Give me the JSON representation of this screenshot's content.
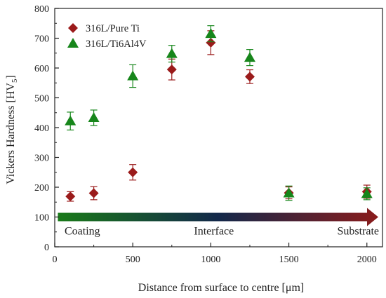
{
  "chart_data": {
    "type": "scatter",
    "xlabel": "Distance from surface to centre [μm]",
    "ylabel": "Vickers Hardness [HV",
    "ylabel_subscript": "5",
    "ylabel_suffix": "]",
    "xlim": [
      0,
      2100
    ],
    "ylim": [
      0,
      800
    ],
    "xticks": [
      0,
      500,
      1000,
      1500,
      2000
    ],
    "yticks": [
      0,
      100,
      200,
      300,
      400,
      500,
      600,
      700,
      800
    ],
    "grid": false,
    "legend_position": "top-left",
    "series": [
      {
        "name": "316L/Pure Ti",
        "marker": "diamond",
        "color": "#9b1b1b",
        "points": [
          {
            "x": 100,
            "y": 169,
            "err": 16
          },
          {
            "x": 250,
            "y": 180,
            "err": 22
          },
          {
            "x": 500,
            "y": 250,
            "err": 26
          },
          {
            "x": 750,
            "y": 595,
            "err": 35
          },
          {
            "x": 1000,
            "y": 685,
            "err": 40
          },
          {
            "x": 1250,
            "y": 571,
            "err": 23
          },
          {
            "x": 1500,
            "y": 181,
            "err": 20
          },
          {
            "x": 2000,
            "y": 185,
            "err": 22
          }
        ]
      },
      {
        "name": "316L/Ti6Al4V",
        "marker": "triangle",
        "color": "#17861b",
        "points": [
          {
            "x": 100,
            "y": 422,
            "err": 30
          },
          {
            "x": 250,
            "y": 433,
            "err": 26
          },
          {
            "x": 500,
            "y": 573,
            "err": 38
          },
          {
            "x": 750,
            "y": 648,
            "err": 28
          },
          {
            "x": 1000,
            "y": 715,
            "err": 27
          },
          {
            "x": 1250,
            "y": 635,
            "err": 27
          },
          {
            "x": 1500,
            "y": 180,
            "err": 24
          },
          {
            "x": 2000,
            "y": 178,
            "err": 20
          }
        ]
      }
    ],
    "gradient_arrow": {
      "y": 100,
      "x_start": 20,
      "x_end": 2100,
      "color_start": "#1a7a1a",
      "color_mid": "#13284a",
      "color_end": "#8a1c1c"
    },
    "annotations": [
      {
        "text": "Coating",
        "x": 100,
        "y": 53
      },
      {
        "text": "Interface",
        "x": 1020,
        "y": 53
      },
      {
        "text": "Substrate",
        "x": 1990,
        "y": 53
      }
    ]
  }
}
